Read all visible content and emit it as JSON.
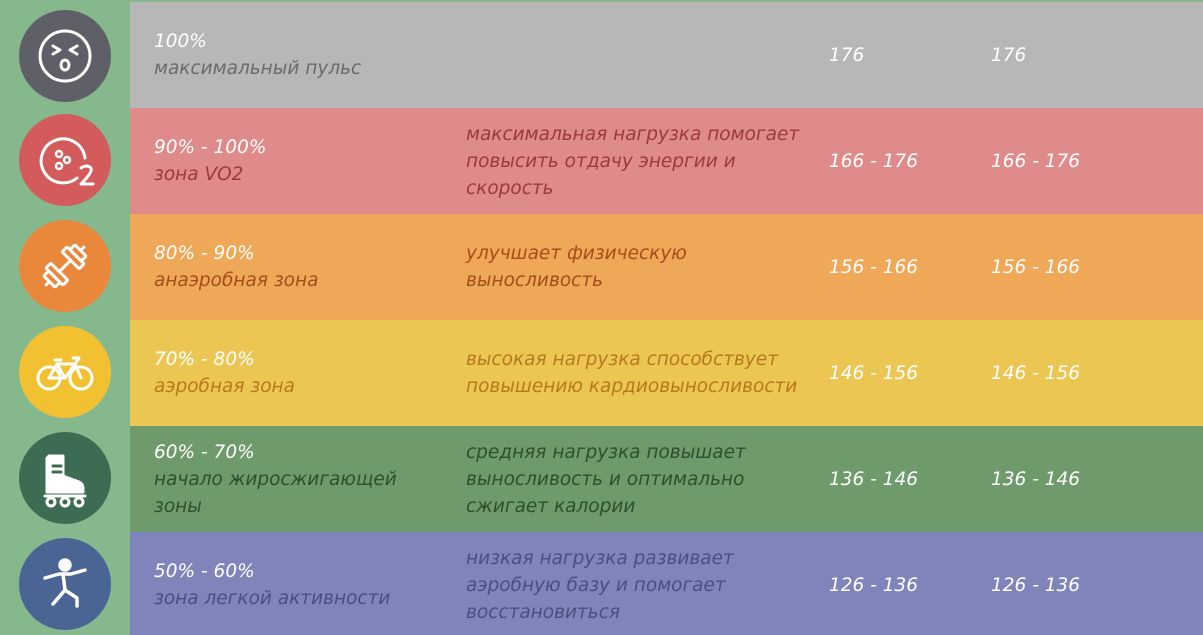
{
  "colors": {
    "sidebar": "#86b88e",
    "row_bg": [
      "#b7b7b7",
      "#e08b8b",
      "#efa758",
      "#ecc653",
      "#6f9a6b",
      "#7f85ba"
    ],
    "icon_bg": [
      "#5f5f67",
      "#d35b5b",
      "#e9873a",
      "#f2c132",
      "#3c6c52",
      "#4a6494"
    ],
    "text_dark": [
      "#6b6b6b",
      "#9a3b3b",
      "#a34e1c",
      "#b67a1e",
      "#2e5030",
      "#4b4e80"
    ]
  },
  "rows": [
    {
      "icon": "dizzy-face-icon",
      "percent": "100%",
      "zone": "максимальный пульс",
      "description": "",
      "value_1": "176",
      "value_2": "176"
    },
    {
      "icon": "oxygen-o2-icon",
      "percent": "90% - 100%",
      "zone": "зона VO2",
      "description": "максимальная нагрузка помогает повысить отдачу энергии и скорость",
      "value_1": "166 - 176",
      "value_2": "166 - 176"
    },
    {
      "icon": "dumbbell-icon",
      "percent": "80% - 90%",
      "zone": "анаэробная зона",
      "description": "улучшает физическую выносливость",
      "value_1": "156 - 166",
      "value_2": "156 - 166"
    },
    {
      "icon": "bicycle-icon",
      "percent": "70% - 80%",
      "zone": "аэробная зона",
      "description": "высокая нагрузка способствует повышению кардиовыносливости",
      "value_1": "146 - 156",
      "value_2": "146 - 156"
    },
    {
      "icon": "roller-skate-icon",
      "percent": "60% - 70%",
      "zone": "начало жиросжигающей зоны",
      "description": "средняя нагрузка повышает выносливость и оптимально сжигает калории",
      "value_1": "136 - 146",
      "value_2": "136 - 146"
    },
    {
      "icon": "stretching-person-icon",
      "percent": "50% - 60%",
      "zone": "зона легкой активности",
      "description": "низкая нагрузка развивает аэробную базу и помогает восстановиться",
      "value_1": "126 - 136",
      "value_2": "126 - 136"
    }
  ]
}
